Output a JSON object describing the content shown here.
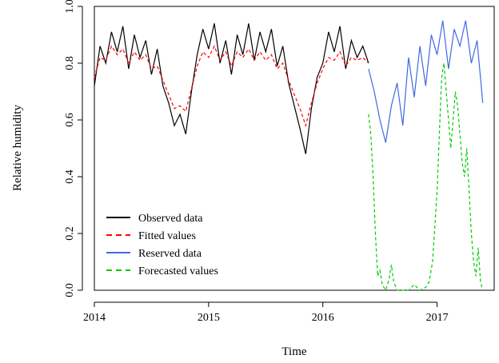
{
  "chart_data": {
    "type": "line",
    "xlabel": "Time",
    "ylabel": "Relative humidity",
    "xlim": [
      2014.0,
      2017.5
    ],
    "ylim": [
      0.0,
      1.0
    ],
    "x_ticks": [
      2014,
      2015,
      2016,
      2017
    ],
    "x_tick_labels": [
      "2014",
      "2015",
      "2016",
      "2017"
    ],
    "y_ticks": [
      0.0,
      0.2,
      0.4,
      0.6,
      0.8,
      1.0
    ],
    "y_tick_labels": [
      "0.0",
      "0.2",
      "0.4",
      "0.6",
      "0.8",
      "1.0"
    ],
    "grid": false,
    "legend_position": "bottom-left",
    "series": [
      {
        "name": "Observed data",
        "color": "#000000",
        "style": "solid",
        "x": [
          2014.0,
          2014.05,
          2014.1,
          2014.15,
          2014.2,
          2014.25,
          2014.3,
          2014.35,
          2014.4,
          2014.45,
          2014.5,
          2014.55,
          2014.6,
          2014.65,
          2014.7,
          2014.75,
          2014.8,
          2014.85,
          2014.9,
          2014.95,
          2015.0,
          2015.05,
          2015.1,
          2015.15,
          2015.2,
          2015.25,
          2015.3,
          2015.35,
          2015.4,
          2015.45,
          2015.5,
          2015.55,
          2015.6,
          2015.65,
          2015.7,
          2015.75,
          2015.8,
          2015.85,
          2015.9,
          2015.95,
          2016.0,
          2016.05,
          2016.1,
          2016.15,
          2016.2,
          2016.25,
          2016.3,
          2016.35,
          2016.4
        ],
        "y": [
          0.72,
          0.86,
          0.8,
          0.91,
          0.84,
          0.93,
          0.78,
          0.9,
          0.82,
          0.88,
          0.76,
          0.85,
          0.72,
          0.66,
          0.58,
          0.62,
          0.55,
          0.7,
          0.83,
          0.92,
          0.85,
          0.94,
          0.8,
          0.88,
          0.76,
          0.9,
          0.83,
          0.94,
          0.81,
          0.91,
          0.84,
          0.92,
          0.79,
          0.86,
          0.73,
          0.65,
          0.57,
          0.48,
          0.64,
          0.75,
          0.8,
          0.91,
          0.84,
          0.93,
          0.78,
          0.88,
          0.82,
          0.86,
          0.8
        ]
      },
      {
        "name": "Fitted values",
        "color": "#ff0000",
        "style": "dashed",
        "x": [
          2014.0,
          2014.05,
          2014.1,
          2014.15,
          2014.2,
          2014.25,
          2014.3,
          2014.35,
          2014.4,
          2014.45,
          2014.5,
          2014.55,
          2014.6,
          2014.65,
          2014.7,
          2014.75,
          2014.8,
          2014.85,
          2014.9,
          2014.95,
          2015.0,
          2015.05,
          2015.1,
          2015.15,
          2015.2,
          2015.25,
          2015.3,
          2015.35,
          2015.4,
          2015.45,
          2015.5,
          2015.55,
          2015.6,
          2015.65,
          2015.7,
          2015.75,
          2015.8,
          2015.85,
          2015.9,
          2015.95,
          2016.0,
          2016.05,
          2016.1,
          2016.15,
          2016.2,
          2016.25,
          2016.3,
          2016.35,
          2016.4
        ],
        "y": [
          0.75,
          0.82,
          0.81,
          0.86,
          0.83,
          0.85,
          0.8,
          0.84,
          0.81,
          0.83,
          0.78,
          0.79,
          0.74,
          0.69,
          0.64,
          0.65,
          0.63,
          0.71,
          0.79,
          0.84,
          0.82,
          0.86,
          0.81,
          0.84,
          0.79,
          0.84,
          0.82,
          0.85,
          0.81,
          0.84,
          0.81,
          0.83,
          0.78,
          0.8,
          0.74,
          0.69,
          0.64,
          0.58,
          0.66,
          0.73,
          0.78,
          0.82,
          0.81,
          0.84,
          0.79,
          0.82,
          0.81,
          0.82,
          0.8
        ]
      },
      {
        "name": "Reserved data",
        "color": "#4169e1",
        "style": "solid",
        "x": [
          2016.4,
          2016.45,
          2016.5,
          2016.55,
          2016.6,
          2016.65,
          2016.7,
          2016.75,
          2016.8,
          2016.85,
          2016.9,
          2016.95,
          2017.0,
          2017.05,
          2017.1,
          2017.15,
          2017.2,
          2017.25,
          2017.3,
          2017.35,
          2017.4
        ],
        "y": [
          0.78,
          0.7,
          0.6,
          0.52,
          0.65,
          0.73,
          0.58,
          0.82,
          0.68,
          0.86,
          0.72,
          0.9,
          0.83,
          0.95,
          0.78,
          0.92,
          0.86,
          0.95,
          0.8,
          0.88,
          0.66
        ]
      },
      {
        "name": "Forecasted values",
        "color": "#00cc00",
        "style": "dashed",
        "x": [
          2016.4,
          2016.42,
          2016.44,
          2016.46,
          2016.48,
          2016.5,
          2016.52,
          2016.55,
          2016.58,
          2016.6,
          2016.62,
          2016.65,
          2016.7,
          2016.75,
          2016.8,
          2016.85,
          2016.9,
          2016.93,
          2016.96,
          2016.98,
          2017.0,
          2017.02,
          2017.04,
          2017.06,
          2017.08,
          2017.1,
          2017.12,
          2017.14,
          2017.16,
          2017.18,
          2017.2,
          2017.22,
          2017.24,
          2017.26,
          2017.28,
          2017.3,
          2017.32,
          2017.34,
          2017.36,
          2017.38,
          2017.4
        ],
        "y": [
          0.62,
          0.55,
          0.4,
          0.2,
          0.05,
          0.07,
          0.02,
          0.0,
          0.04,
          0.09,
          0.03,
          0.0,
          0.0,
          0.0,
          0.02,
          0.0,
          0.01,
          0.03,
          0.1,
          0.22,
          0.35,
          0.55,
          0.75,
          0.8,
          0.7,
          0.6,
          0.5,
          0.6,
          0.7,
          0.65,
          0.55,
          0.45,
          0.4,
          0.5,
          0.35,
          0.2,
          0.1,
          0.05,
          0.15,
          0.03,
          0.0
        ]
      }
    ]
  }
}
